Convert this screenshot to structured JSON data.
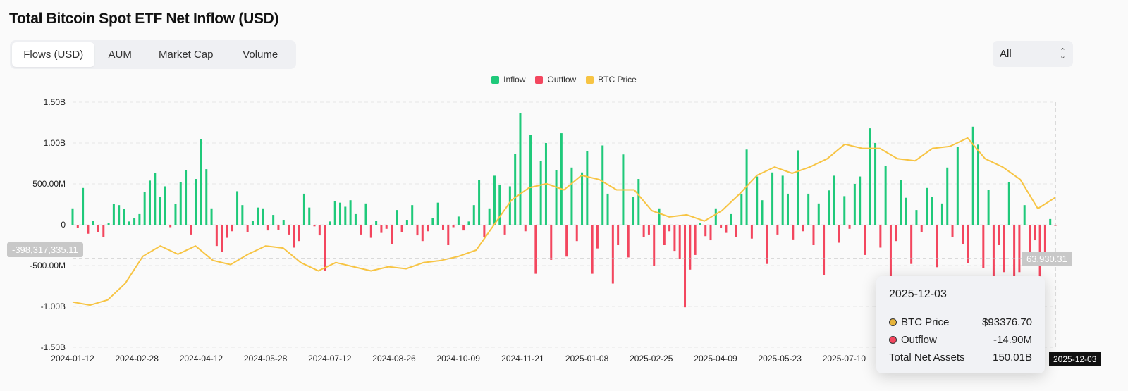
{
  "header": {
    "title": "Total Bitcoin Spot ETF Net Inflow (USD)"
  },
  "tabs": [
    {
      "label": "Flows (USD)",
      "active": true
    },
    {
      "label": "AUM"
    },
    {
      "label": "Market Cap"
    },
    {
      "label": "Volume"
    }
  ],
  "range_select": {
    "value": "All"
  },
  "colors": {
    "inflow": "#1fc97a",
    "outflow": "#f3465e",
    "btc_price": "#f7c443"
  },
  "crosshair": {
    "left_value": "-398,317,335.11",
    "right_value": "63,930.31",
    "date": "2025-12-03"
  },
  "tooltip": {
    "date": "2025-12-03",
    "rows": [
      {
        "label": "BTC Price",
        "value": "$93376.70"
      },
      {
        "label": "Outflow",
        "value": "-14.90M"
      },
      {
        "label": "Total Net Assets",
        "value": "150.01B"
      }
    ]
  },
  "chart_data": {
    "type": "bar",
    "title": "Total Bitcoin Spot ETF Net Inflow (USD)",
    "legend": [
      "Inflow",
      "Outflow",
      "BTC Price"
    ],
    "legend_position": "top-center",
    "y_ticks": [
      "1.50B",
      "1.00B",
      "500.00M",
      "0",
      "-500.00M",
      "-1.00B",
      "-1.50B"
    ],
    "ylim_millions": [
      -1500,
      1500
    ],
    "x_ticks": [
      "2024-01-12",
      "2024-02-28",
      "2024-04-12",
      "2024-05-28",
      "2024-07-12",
      "2024-08-26",
      "2024-10-09",
      "2024-11-21",
      "2025-01-08",
      "2025-02-25",
      "2025-04-09",
      "2025-05-23",
      "2025-07-10"
    ],
    "x_range": [
      "2024-01-12",
      "2025-12-03"
    ],
    "grid": true,
    "net_flow_millions": [
      200,
      -40,
      450,
      -110,
      50,
      -90,
      -150,
      20,
      250,
      240,
      190,
      40,
      80,
      130,
      400,
      540,
      630,
      340,
      470,
      -30,
      250,
      520,
      670,
      -120,
      560,
      1045,
      680,
      200,
      -260,
      -330,
      -160,
      -80,
      410,
      240,
      -90,
      50,
      210,
      200,
      -70,
      120,
      -60,
      60,
      -120,
      -280,
      -200,
      380,
      210,
      -20,
      -130,
      -560,
      40,
      290,
      270,
      220,
      300,
      130,
      -120,
      260,
      -160,
      50,
      -100,
      -50,
      -240,
      180,
      -90,
      60,
      240,
      -130,
      -200,
      -80,
      80,
      270,
      -60,
      -250,
      -30,
      100,
      -70,
      40,
      240,
      550,
      -150,
      200,
      600,
      490,
      -120,
      470,
      870,
      1370,
      -80,
      1100,
      -600,
      780,
      1000,
      -430,
      670,
      1120,
      -390,
      700,
      -200,
      640,
      900,
      -600,
      -290,
      970,
      380,
      -720,
      -250,
      860,
      -400,
      340,
      560,
      -150,
      -120,
      -500,
      200,
      -250,
      -80,
      -320,
      -420,
      -1010,
      -550,
      -370,
      20,
      -140,
      -190,
      200,
      -40,
      -100,
      130,
      -150,
      380,
      920,
      -170,
      590,
      300,
      -480,
      640,
      -120,
      600,
      380,
      -180,
      910,
      -80,
      380,
      -250,
      260,
      -620,
      420,
      600,
      -220,
      350,
      -50,
      500,
      590,
      -370,
      1180,
      1000,
      -280,
      720,
      -810,
      -200,
      550,
      330,
      -480,
      180,
      -90,
      450,
      340,
      -520,
      260,
      700,
      -150,
      950,
      -240,
      -470,
      1200,
      980,
      -530,
      430,
      -870,
      -250,
      -580,
      520,
      -900,
      -580,
      240,
      -430,
      -190,
      -870,
      -360,
      70,
      -14.9
    ],
    "btc_price_usd": [
      43000,
      41500,
      44000,
      52000,
      65000,
      70000,
      66000,
      70000,
      63000,
      61000,
      66000,
      70000,
      69000,
      62000,
      58000,
      62000,
      60000,
      58000,
      60000,
      59000,
      62000,
      63000,
      65000,
      68000,
      80000,
      92000,
      98000,
      100000,
      97000,
      104000,
      102000,
      97000,
      97000,
      87000,
      84000,
      85000,
      82000,
      87000,
      95000,
      104000,
      108000,
      105000,
      108000,
      112000,
      119000,
      117000,
      117000,
      112000,
      111000,
      117000,
      118000,
      122000,
      112000,
      108000,
      102000,
      88000,
      93376.7
    ],
    "price_axis_usd": [
      21176,
      139260
    ]
  }
}
